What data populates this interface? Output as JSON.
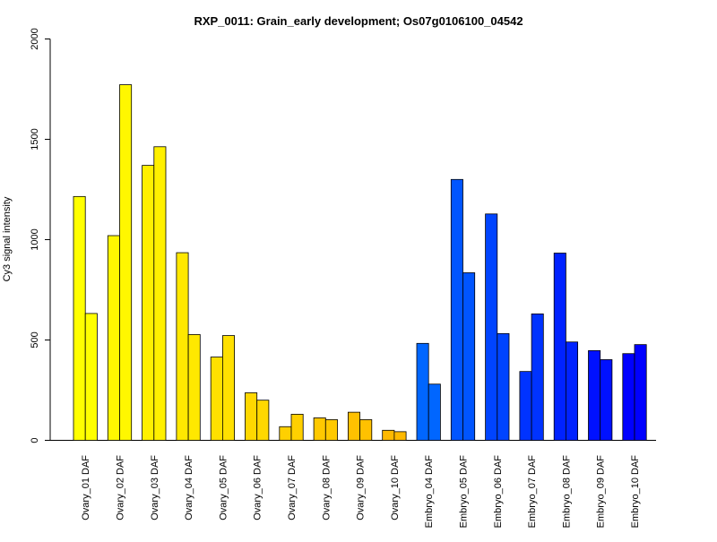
{
  "chart_data": {
    "type": "bar",
    "title": "RXP_0011: Grain_early development; Os07g0106100_04542",
    "xlabel": "",
    "ylabel": "Cy3 signal intensity",
    "ylim": [
      0,
      2000
    ],
    "yticks": [
      0,
      500,
      1000,
      1500,
      2000
    ],
    "grid": false,
    "legend": "none",
    "categories": [
      "Ovary_01 DAF",
      "Ovary_02 DAF",
      "Ovary_03 DAF",
      "Ovary_04 DAF",
      "Ovary_05 DAF",
      "Ovary_06 DAF",
      "Ovary_07 DAF",
      "Ovary_08 DAF",
      "Ovary_09 DAF",
      "Ovary_10 DAF",
      "Embryo_04 DAF",
      "Embryo_05 DAF",
      "Embryo_06 DAF",
      "Embryo_07 DAF",
      "Embryo_08 DAF",
      "Embryo_09 DAF",
      "Embryo_10 DAF"
    ],
    "colors": [
      "#FFFF00",
      "#FFF700",
      "#FFF000",
      "#FFE800",
      "#FFE000",
      "#FFD800",
      "#FFD000",
      "#FFC900",
      "#FFC100",
      "#FFB900",
      "#0066FF",
      "#0055FF",
      "#0044FF",
      "#0033FF",
      "#0022FF",
      "#0011FF",
      "#0000FF"
    ],
    "series": [
      {
        "values": [
          1215,
          1020,
          1370,
          935,
          415,
          237,
          68,
          112,
          140,
          50,
          483,
          1300,
          1128,
          343,
          933,
          447,
          432
        ]
      },
      {
        "values": [
          632,
          1772,
          1463,
          527,
          522,
          200,
          130,
          103,
          103,
          43,
          280,
          835,
          532,
          630,
          490,
          402,
          477
        ]
      }
    ]
  }
}
